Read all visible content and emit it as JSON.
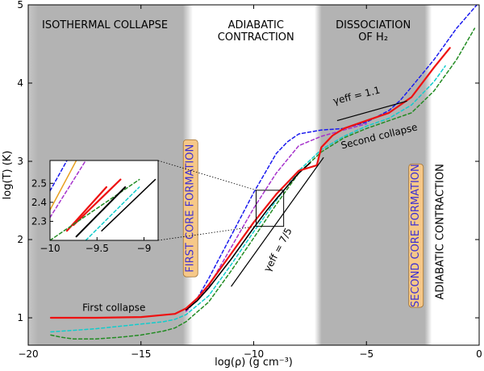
{
  "chart_data": {
    "type": "line",
    "xlabel": "log(ρ) (g cm⁻³)",
    "ylabel": "log(T) (K)",
    "xlim": [
      -20,
      0
    ],
    "ylim": [
      0.65,
      5
    ],
    "xticks": [
      -20,
      -15,
      -10,
      -5,
      0
    ],
    "xtick_labels": [
      "−20",
      "−15",
      "−10",
      "−5",
      "0"
    ],
    "yticks": [
      1,
      2,
      3,
      4,
      5
    ],
    "ytick_labels": [
      "1",
      "2",
      "3",
      "4",
      "5"
    ],
    "grid": false,
    "shaded_regions": [
      {
        "x": [
          -20,
          -13.2
        ],
        "color": "#b3b3b3"
      },
      {
        "x": [
          -6.8,
          -2.6
        ],
        "color": "#b3b3b3"
      }
    ],
    "region_labels": [
      {
        "lines": [
          "ISOTHERMAL COLLAPSE"
        ],
        "x": -16.6,
        "y": 4.7
      },
      {
        "lines": [
          "ADIABATIC",
          "CONTRACTION"
        ],
        "x": -9.9,
        "y": 4.7
      },
      {
        "lines": [
          "DISSOCIATION",
          "OF H₂"
        ],
        "x": -4.7,
        "y": 4.7
      },
      {
        "lines": [
          "ADIABATIC CONTRACTION"
        ],
        "x": -1.6,
        "y": 2.1,
        "rotate": -90
      }
    ],
    "core_labels": [
      {
        "text": "FIRST CORE FORMATION",
        "x": -12.8,
        "y": 2.4
      },
      {
        "text": "SECOND CORE FORMATION",
        "x": -2.8,
        "y": 2.05
      }
    ],
    "annotations": [
      {
        "text": "First collapse",
        "x": -16.2,
        "y": 1.09
      },
      {
        "text": "Second collapse",
        "x": -4.4,
        "y": 3.28,
        "rotate": -14
      },
      {
        "text": "γeff = 1.1",
        "x": -5.4,
        "y": 3.8,
        "rotate": -14
      },
      {
        "text": "γeff = 7/5",
        "x": -8.8,
        "y": 1.85,
        "rotate": -62
      }
    ],
    "slope_lines": [
      {
        "x": [
          -11,
          -6.9
        ],
        "y": [
          1.4,
          3.05
        ]
      },
      {
        "x": [
          -6.3,
          -3.2
        ],
        "y": [
          3.52,
          3.77
        ]
      }
    ],
    "series": [
      {
        "color": "#ee1111",
        "dash": "solid",
        "width": 2.2,
        "x": [
          -19,
          -17,
          -15,
          -13.5,
          -13,
          -12.5,
          -12,
          -11,
          -10,
          -9,
          -8,
          -7.2,
          -7,
          -6.5,
          -6,
          -5,
          -4,
          -3,
          -2,
          -1.3
        ],
        "y": [
          1.0,
          1.0,
          1.01,
          1.05,
          1.12,
          1.25,
          1.42,
          1.82,
          2.22,
          2.58,
          2.88,
          2.95,
          3.18,
          3.33,
          3.42,
          3.52,
          3.62,
          3.82,
          4.2,
          4.45
        ]
      },
      {
        "color": "#000000",
        "dash": "solid",
        "width": 1.6,
        "x": [
          -13,
          -12.5,
          -12,
          -11,
          -10,
          -9.4,
          -9,
          -8,
          -7.5
        ],
        "y": [
          1.1,
          1.22,
          1.38,
          1.75,
          2.15,
          2.38,
          2.52,
          2.85,
          2.98
        ]
      },
      {
        "color": "#11cccc",
        "dash": "4,3",
        "width": 1.5,
        "x": [
          -19,
          -18,
          -17,
          -16,
          -15,
          -14,
          -13.5,
          -13,
          -12,
          -11,
          -10,
          -9,
          -8,
          -7,
          -6,
          -5,
          -4,
          -3,
          -2,
          -1.5
        ],
        "y": [
          0.82,
          0.84,
          0.86,
          0.89,
          0.92,
          0.95,
          0.98,
          1.04,
          1.28,
          1.68,
          2.1,
          2.5,
          2.88,
          3.15,
          3.32,
          3.45,
          3.55,
          3.72,
          4.02,
          4.22
        ]
      },
      {
        "color": "#228b22",
        "dash": "4,3",
        "width": 1.5,
        "x": [
          -19,
          -18.5,
          -18,
          -17,
          -16,
          -15,
          -14,
          -13.5,
          -13,
          -12,
          -11,
          -10,
          -9,
          -8,
          -7,
          -6,
          -5,
          -4,
          -3,
          -2,
          -1,
          -0.2
        ],
        "y": [
          0.78,
          0.75,
          0.73,
          0.73,
          0.75,
          0.78,
          0.83,
          0.87,
          0.95,
          1.2,
          1.6,
          2.02,
          2.45,
          2.85,
          3.12,
          3.3,
          3.42,
          3.52,
          3.62,
          3.9,
          4.3,
          4.7
        ]
      },
      {
        "color": "#1a1aee",
        "dash": "4,3",
        "width": 1.5,
        "x": [
          -13,
          -12.5,
          -12,
          -11,
          -10,
          -9,
          -8.5,
          -8,
          -7,
          -6,
          -5,
          -4,
          -3.5,
          -3,
          -2,
          -1,
          -0.1
        ],
        "y": [
          1.1,
          1.25,
          1.5,
          2.05,
          2.6,
          3.1,
          3.25,
          3.35,
          3.4,
          3.42,
          3.5,
          3.65,
          3.78,
          3.95,
          4.3,
          4.7,
          5.0
        ]
      },
      {
        "color": "#a633cc",
        "dash": "4,3",
        "width": 1.5,
        "x": [
          -13,
          -12,
          -11,
          -10,
          -9,
          -8,
          -7,
          -6,
          -5
        ],
        "y": [
          1.08,
          1.4,
          1.9,
          2.4,
          2.85,
          3.2,
          3.32,
          3.4,
          3.48
        ]
      }
    ],
    "inset": {
      "xlim": [
        -10,
        -8.85
      ],
      "ylim": [
        2.2,
        2.62
      ],
      "xticks": [
        -10,
        -9.5,
        -9
      ],
      "xtick_labels": [
        "−10",
        "−9.5",
        "−9"
      ],
      "yticks": [
        2.3,
        2.4,
        2.5
      ],
      "ytick_labels": [
        "2.3",
        "2.4",
        "2.5"
      ],
      "zoom_box": {
        "x": [
          -10,
          -8.85
        ],
        "y": [
          2.2,
          2.62
        ]
      },
      "series": [
        {
          "color": "#1a1aee",
          "dash": "4,3",
          "width": 1.5,
          "x": [
            -10,
            -9.82
          ],
          "y": [
            2.46,
            2.62
          ]
        },
        {
          "color": "#e8a020",
          "dash": "solid",
          "width": 1.5,
          "x": [
            -10,
            -9.72
          ],
          "y": [
            2.36,
            2.62
          ]
        },
        {
          "color": "#a633cc",
          "dash": "4,3",
          "width": 1.5,
          "x": [
            -10,
            -9.62
          ],
          "y": [
            2.32,
            2.62
          ]
        },
        {
          "color": "#ee1111",
          "dash": "solid",
          "width": 2.2,
          "x": [
            -9.82,
            -9.4
          ],
          "y": [
            2.25,
            2.48
          ]
        },
        {
          "color": "#ee1111",
          "dash": "solid",
          "width": 2.2,
          "x": [
            -9.75,
            -9.25
          ],
          "y": [
            2.28,
            2.52
          ]
        },
        {
          "color": "#228b22",
          "dash": "4,3",
          "width": 1.5,
          "x": [
            -10,
            -9.05
          ],
          "y": [
            2.2,
            2.52
          ]
        },
        {
          "color": "#000000",
          "dash": "solid",
          "width": 2.0,
          "x": [
            -9.72,
            -9.2
          ],
          "y": [
            2.22,
            2.48
          ]
        },
        {
          "color": "#000000",
          "dash": "solid",
          "width": 1.5,
          "x": [
            -9.45,
            -8.88
          ],
          "y": [
            2.25,
            2.52
          ]
        },
        {
          "color": "#11cccc",
          "dash": "4,3",
          "width": 1.5,
          "x": [
            -9.62,
            -9.05
          ],
          "y": [
            2.2,
            2.48
          ]
        }
      ]
    }
  }
}
